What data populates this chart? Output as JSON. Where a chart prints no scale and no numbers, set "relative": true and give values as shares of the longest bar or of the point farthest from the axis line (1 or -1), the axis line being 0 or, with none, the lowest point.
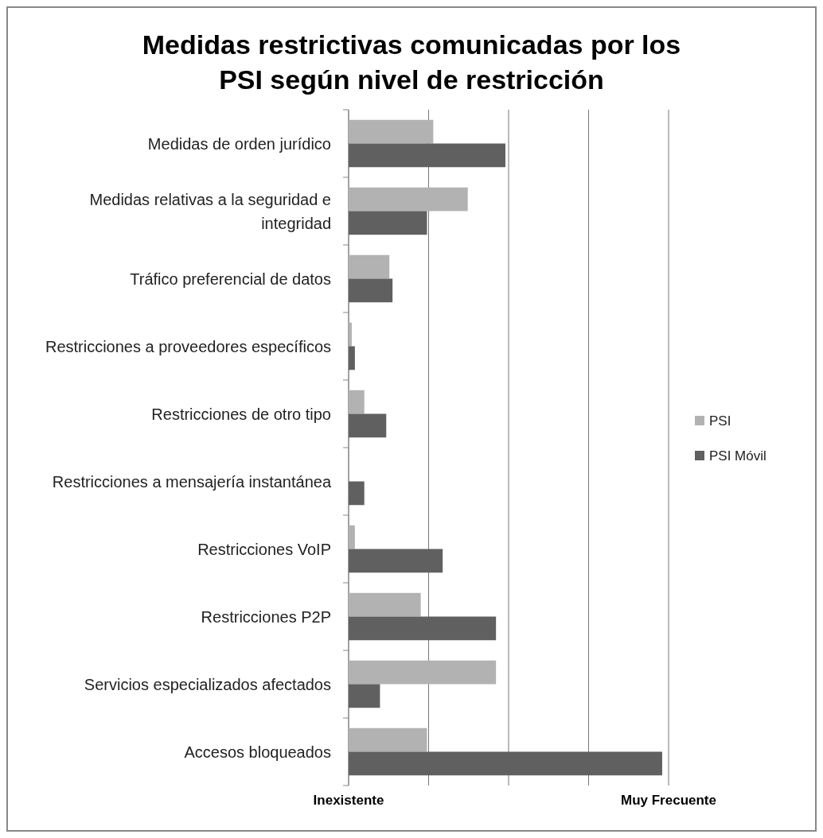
{
  "chart_data": {
    "type": "bar",
    "orientation": "horizontal",
    "relative": true,
    "title": "Medidas restrictivas comunicadas por los PSI según nivel de restricción",
    "categories": [
      "Medidas de orden jurídico",
      "Medidas relativas a la seguridad e integridad",
      "Tráfico preferencial de datos",
      "Restricciones a proveedores específicos",
      "Restricciones de otro tipo",
      "Restricciones a mensajería instantánea",
      "Restricciones VoIP",
      "Restricciones P2P",
      "Servicios especializados afectados",
      "Accesos bloqueados"
    ],
    "series": [
      {
        "name": "PSI",
        "color": "#b2b2b2",
        "values": [
          0.27,
          0.38,
          0.13,
          0.01,
          0.05,
          0,
          0.02,
          0.23,
          0.47,
          0.25
        ]
      },
      {
        "name": "PSI Móvil",
        "color": "#606060",
        "values": [
          0.5,
          0.25,
          0.14,
          0.02,
          0.12,
          0.05,
          0.3,
          0.47,
          0.1,
          1
        ]
      }
    ],
    "annotations": [
      "Inexistente",
      "Muy Frecuente"
    ],
    "grid": "x",
    "legend": "right"
  }
}
